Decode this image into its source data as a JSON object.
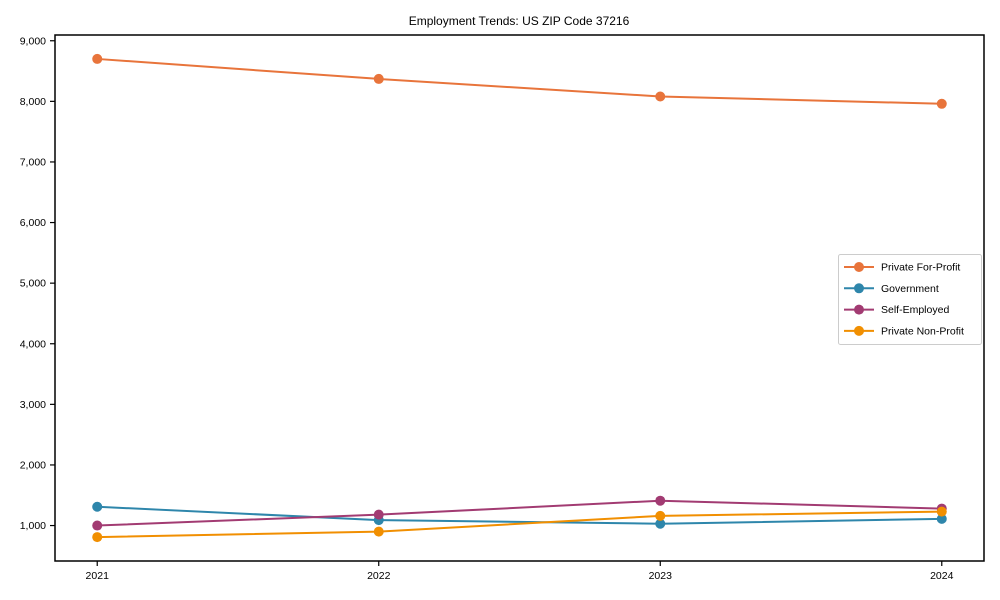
{
  "page": {
    "background": "#ffffff"
  },
  "chart_data": {
    "type": "line",
    "title": "Employment Trends: US ZIP Code 37216",
    "xlabel": "",
    "ylabel": "",
    "x": [
      2021,
      2022,
      2023,
      2024
    ],
    "x_tick_labels": [
      "2021",
      "2022",
      "2023",
      "2024"
    ],
    "y_ticks": [
      1000,
      2000,
      3000,
      4000,
      5000,
      6000,
      7000,
      8000,
      9000
    ],
    "y_tick_labels": [
      "1,000",
      "2,000",
      "3,000",
      "4,000",
      "5,000",
      "6,000",
      "7,000",
      "8,000",
      "9,000"
    ],
    "xlim": [
      2020.85,
      2024.15
    ],
    "ylim": [
      415,
      9095
    ],
    "grid": false,
    "legend_position": "center right",
    "axis_color": "#000000",
    "legend_border_color": "#cccccc",
    "series": [
      {
        "name": "Private For-Profit",
        "color": "#E8743B",
        "values": [
          8700,
          8370,
          8080,
          7960
        ]
      },
      {
        "name": "Government",
        "color": "#2E86AB",
        "values": [
          1310,
          1090,
          1030,
          1110
        ]
      },
      {
        "name": "Self-Employed",
        "color": "#A23B72",
        "values": [
          1000,
          1180,
          1410,
          1280
        ]
      },
      {
        "name": "Private Non-Profit",
        "color": "#F18F01",
        "values": [
          810,
          900,
          1160,
          1230
        ]
      }
    ]
  }
}
